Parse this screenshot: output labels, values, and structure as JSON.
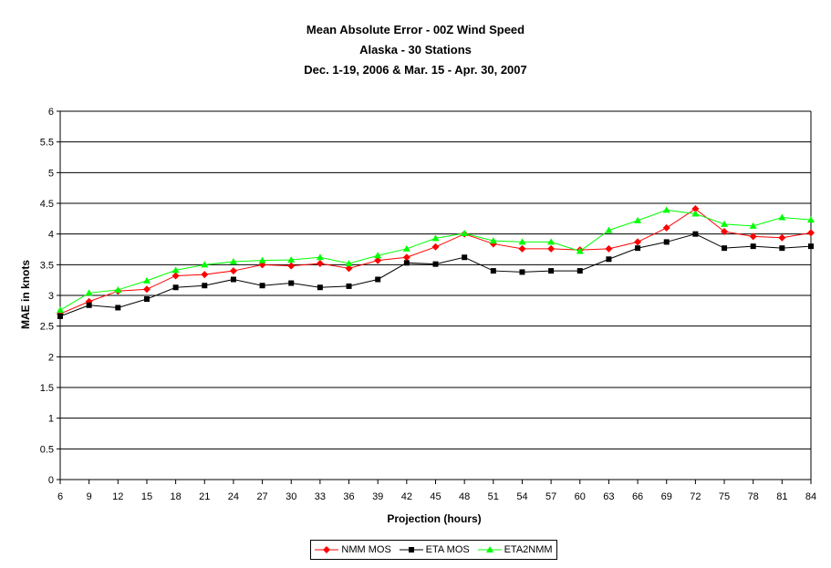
{
  "chart_data": {
    "type": "line",
    "title": "Mean Absolute Error - 00Z Wind Speed",
    "subtitle": [
      "Alaska - 30 Stations",
      "Dec. 1-19, 2006 & Mar. 15 - Apr. 30, 2007"
    ],
    "xlabel": "Projection (hours)",
    "ylabel": "MAE in knots",
    "ylim": [
      0,
      6
    ],
    "yticks": [
      "0",
      "0.5",
      "1",
      "1.5",
      "2",
      "2.5",
      "3",
      "3.5",
      "4",
      "4.5",
      "5",
      "5.5",
      "6"
    ],
    "grid": true,
    "legend_position": "bottom",
    "x": [
      6,
      9,
      12,
      15,
      18,
      21,
      24,
      27,
      30,
      33,
      36,
      39,
      42,
      45,
      48,
      51,
      54,
      57,
      60,
      63,
      66,
      69,
      72,
      75,
      78,
      81,
      84
    ],
    "series": [
      {
        "name": "NMM MOS",
        "color": "#ff0000",
        "marker": "diamond",
        "values": [
          2.7,
          2.9,
          3.07,
          3.1,
          3.32,
          3.34,
          3.4,
          3.5,
          3.48,
          3.52,
          3.44,
          3.57,
          3.62,
          3.79,
          4.0,
          3.84,
          3.76,
          3.76,
          3.74,
          3.76,
          3.87,
          4.1,
          4.41,
          4.04,
          3.96,
          3.94,
          4.02
        ]
      },
      {
        "name": "ETA MOS",
        "color": "#000000",
        "marker": "square",
        "values": [
          2.66,
          2.84,
          2.8,
          2.94,
          3.13,
          3.16,
          3.26,
          3.16,
          3.2,
          3.13,
          3.15,
          3.26,
          3.53,
          3.51,
          3.62,
          3.4,
          3.38,
          3.4,
          3.4,
          3.59,
          3.77,
          3.87,
          4.0,
          3.77,
          3.8,
          3.77,
          3.8
        ]
      },
      {
        "name": "ETA2NMM",
        "color": "#00ff00",
        "marker": "triangle",
        "values": [
          2.76,
          3.04,
          3.09,
          3.24,
          3.41,
          3.5,
          3.55,
          3.57,
          3.58,
          3.62,
          3.52,
          3.65,
          3.76,
          3.93,
          4.01,
          3.89,
          3.87,
          3.87,
          3.72,
          4.06,
          4.22,
          4.39,
          4.33,
          4.16,
          4.13,
          4.27,
          4.23
        ]
      }
    ]
  }
}
